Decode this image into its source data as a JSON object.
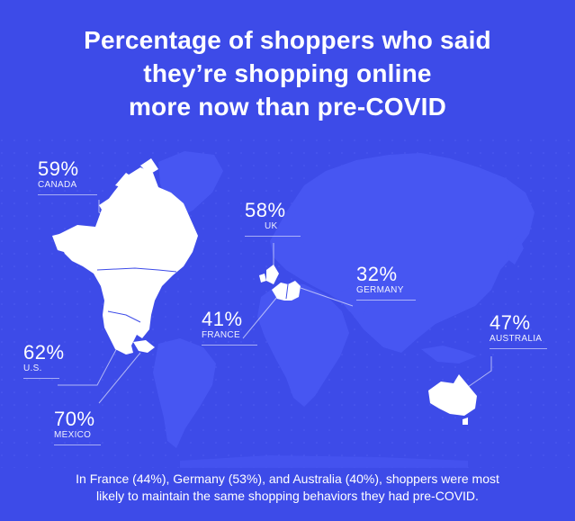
{
  "title_lines": [
    "Percentage of shoppers who said",
    "they’re shopping online",
    "more now than pre-COVID"
  ],
  "markers": [
    {
      "id": "canada",
      "percent": "59%",
      "country": "CANADA"
    },
    {
      "id": "uk",
      "percent": "58%",
      "country": "UK"
    },
    {
      "id": "germany",
      "percent": "32%",
      "country": "GERMANY"
    },
    {
      "id": "france",
      "percent": "41%",
      "country": "FRANCE"
    },
    {
      "id": "australia",
      "percent": "47%",
      "country": "AUSTRALIA"
    },
    {
      "id": "us",
      "percent": "62%",
      "country": "U.S."
    },
    {
      "id": "mexico",
      "percent": "70%",
      "country": "MEXICO"
    }
  ],
  "footer_lines": [
    "In France (44%), Germany (53%), and Australia (40%), shoppers were most",
    "likely to maintain the same shopping behaviors they had pre-COVID."
  ],
  "colors": {
    "background": "#3d4be8",
    "continent": "#4756f2",
    "highlight": "#ffffff",
    "text": "#ffffff"
  }
}
